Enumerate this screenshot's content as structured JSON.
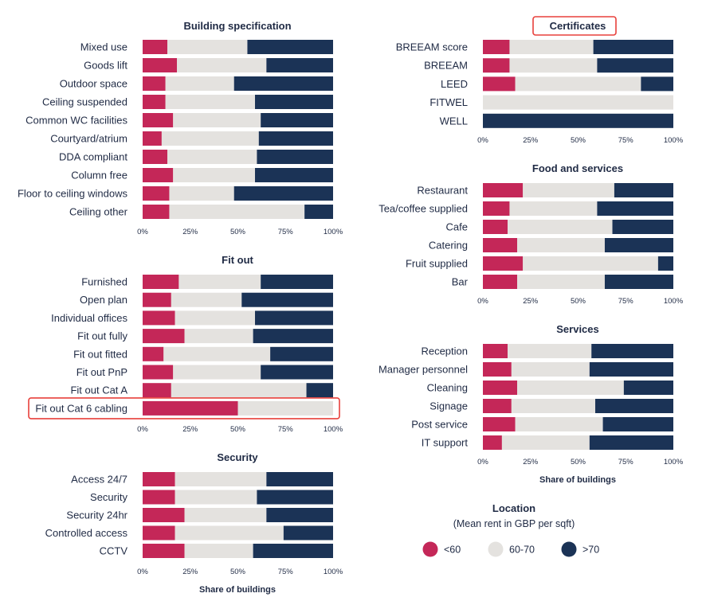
{
  "colors": {
    "low": "#c42758",
    "mid": "#e4e2df",
    "high": "#1b3356",
    "highlight": "#e8403b"
  },
  "legend": {
    "title": "Location",
    "subtitle": "(Mean rent in GBP per sqft)",
    "items": [
      {
        "label": "<60",
        "color": "#c42758"
      },
      {
        "label": "60-70",
        "color": "#e4e2df"
      },
      {
        "label": ">70",
        "color": "#1b3356"
      }
    ]
  },
  "chart_data": [
    {
      "type": "bar",
      "title": "Building specification",
      "xlabel": "",
      "xlim": [
        0,
        100
      ],
      "stacked": true,
      "orientation": "horizontal",
      "ticks": [
        "0%",
        "25%",
        "50%",
        "75%",
        "100%"
      ],
      "categories": [
        "Mixed use",
        "Goods lift",
        "Outdoor space",
        "Ceiling suspended",
        "Common WC facilities",
        "Courtyard/atrium",
        "DDA compliant",
        "Column free",
        "Floor to ceiling windows",
        "Ceiling other"
      ],
      "series": [
        {
          "name": "<60",
          "values": [
            13,
            18,
            12,
            12,
            16,
            10,
            13,
            16,
            14,
            14
          ]
        },
        {
          "name": "60-70",
          "values": [
            42,
            47,
            36,
            47,
            46,
            51,
            47,
            43,
            34,
            71
          ]
        },
        {
          "name": ">70",
          "values": [
            45,
            35,
            52,
            41,
            38,
            39,
            40,
            41,
            52,
            15
          ]
        }
      ]
    },
    {
      "type": "bar",
      "title": "Fit out",
      "xlabel": "",
      "xlim": [
        0,
        100
      ],
      "stacked": true,
      "orientation": "horizontal",
      "ticks": [
        "0%",
        "25%",
        "50%",
        "75%",
        "100%"
      ],
      "highlight": "Fit out Cat 6 cabling",
      "categories": [
        "Furnished",
        "Open plan",
        "Individual offices",
        "Fit out fully",
        "Fit out fitted",
        "Fit out PnP",
        "Fit out Cat A",
        "Fit out Cat 6 cabling"
      ],
      "series": [
        {
          "name": "<60",
          "values": [
            19,
            15,
            17,
            22,
            11,
            16,
            15,
            50
          ]
        },
        {
          "name": "60-70",
          "values": [
            43,
            37,
            42,
            36,
            56,
            46,
            71,
            50
          ]
        },
        {
          "name": ">70",
          "values": [
            38,
            48,
            41,
            42,
            33,
            38,
            14,
            0
          ]
        }
      ]
    },
    {
      "type": "bar",
      "title": "Security",
      "xlabel": "Share of buildings",
      "xlim": [
        0,
        100
      ],
      "stacked": true,
      "orientation": "horizontal",
      "ticks": [
        "0%",
        "25%",
        "50%",
        "75%",
        "100%"
      ],
      "categories": [
        "Access 24/7",
        "Security",
        "Security 24hr",
        "Controlled access",
        "CCTV"
      ],
      "series": [
        {
          "name": "<60",
          "values": [
            17,
            17,
            22,
            17,
            22
          ]
        },
        {
          "name": "60-70",
          "values": [
            48,
            43,
            43,
            57,
            36
          ]
        },
        {
          "name": ">70",
          "values": [
            35,
            40,
            35,
            26,
            42
          ]
        }
      ]
    },
    {
      "type": "bar",
      "title": "Certificates",
      "xlabel": "",
      "xlim": [
        0,
        100
      ],
      "stacked": true,
      "orientation": "horizontal",
      "ticks": [
        "0%",
        "25%",
        "50%",
        "75%",
        "100%"
      ],
      "title_highlight": true,
      "categories": [
        "BREEAM score",
        "BREEAM",
        "LEED",
        "FITWEL",
        "WELL"
      ],
      "series": [
        {
          "name": "<60",
          "values": [
            14,
            14,
            17,
            0,
            0
          ]
        },
        {
          "name": "60-70",
          "values": [
            44,
            46,
            66,
            100,
            0
          ]
        },
        {
          "name": ">70",
          "values": [
            42,
            40,
            17,
            0,
            100
          ]
        }
      ]
    },
    {
      "type": "bar",
      "title": "Food and services",
      "xlabel": "",
      "xlim": [
        0,
        100
      ],
      "stacked": true,
      "orientation": "horizontal",
      "ticks": [
        "0%",
        "25%",
        "50%",
        "75%",
        "100%"
      ],
      "categories": [
        "Restaurant",
        "Tea/coffee supplied",
        "Cafe",
        "Catering",
        "Fruit supplied",
        "Bar"
      ],
      "series": [
        {
          "name": "<60",
          "values": [
            21,
            14,
            13,
            18,
            21,
            18
          ]
        },
        {
          "name": "60-70",
          "values": [
            48,
            46,
            55,
            46,
            71,
            46
          ]
        },
        {
          "name": ">70",
          "values": [
            31,
            40,
            32,
            36,
            8,
            36
          ]
        }
      ]
    },
    {
      "type": "bar",
      "title": "Services",
      "xlabel": "Share of buildings",
      "xlim": [
        0,
        100
      ],
      "stacked": true,
      "orientation": "horizontal",
      "ticks": [
        "0%",
        "25%",
        "50%",
        "75%",
        "100%"
      ],
      "categories": [
        "Reception",
        "Manager personnel",
        "Cleaning",
        "Signage",
        "Post service",
        "IT support"
      ],
      "series": [
        {
          "name": "<60",
          "values": [
            13,
            15,
            18,
            15,
            17,
            10
          ]
        },
        {
          "name": "60-70",
          "values": [
            44,
            41,
            56,
            44,
            46,
            46
          ]
        },
        {
          "name": ">70",
          "values": [
            43,
            44,
            26,
            41,
            37,
            44
          ]
        }
      ]
    }
  ]
}
